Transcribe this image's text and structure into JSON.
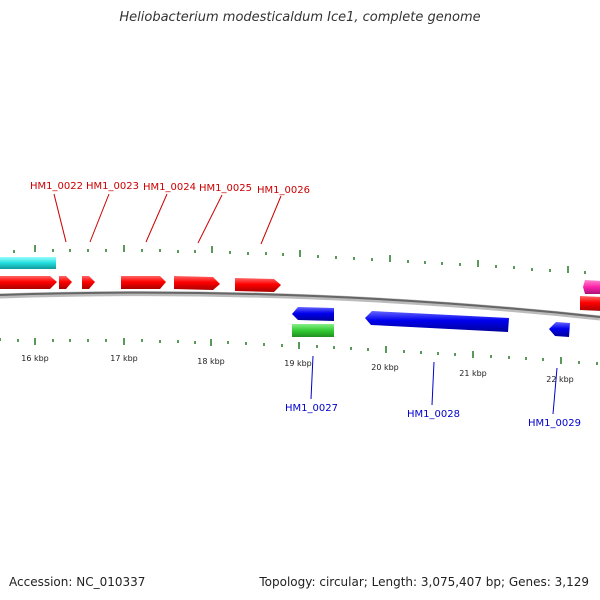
{
  "title": "Heliobacterium modesticaldum Ice1, complete genome",
  "footer": {
    "accession": "Accession: NC_010337",
    "summary": "Topology: circular; Length: 3,075,407 bp; Genes: 3,129"
  },
  "kbp_labels": [
    "16 kbp",
    "17 kbp",
    "18 kbp",
    "19 kbp",
    "20 kbp",
    "21 kbp",
    "22 kbp"
  ],
  "forward_gene_labels": [
    "HM1_0022",
    "HM1_0023",
    "HM1_0024",
    "HM1_0025",
    "HM1_0026"
  ],
  "reverse_gene_labels": [
    "HM1_0027",
    "HM1_0028",
    "HM1_0029"
  ],
  "colors": {
    "forward_gene": "#ff0000",
    "reverse_gene": "#0000ee",
    "rna": "#33cc33",
    "cyan_feature": "#22dddd",
    "magenta_feature": "#ff22aa",
    "backbone": "#777777",
    "tick": "#227722"
  }
}
